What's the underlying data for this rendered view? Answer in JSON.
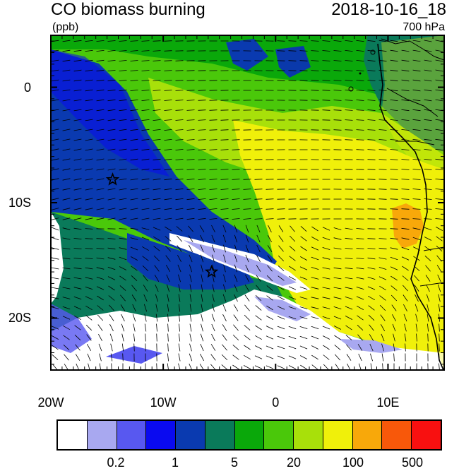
{
  "header": {
    "title": "CO biomass burning",
    "datetime": "2018-10-16_18",
    "units": "(ppb)",
    "level": "700 hPa"
  },
  "map": {
    "lat_labels": [
      "0",
      "10S",
      "20S"
    ],
    "lon_labels": [
      "20W",
      "10W",
      "0",
      "10E"
    ],
    "lat_values": [
      0,
      -10,
      -20
    ],
    "lon_values": [
      -20,
      -10,
      0,
      10
    ],
    "extent": {
      "lon_min": -20,
      "lon_max": 15,
      "lat_min": -24.5,
      "lat_max": 4.5
    },
    "markers": [
      {
        "type": "star",
        "lon": -14.5,
        "lat": -8.0
      },
      {
        "type": "star",
        "lon": -5.7,
        "lat": -16.0
      }
    ]
  },
  "colorbar": {
    "colors": [
      "#ffffff",
      "#a8a8f0",
      "#5858f0",
      "#0a0af0",
      "#0a3ab0",
      "#0a7a5a",
      "#0aa80a",
      "#4ac80a",
      "#a8e00a",
      "#f0f00a",
      "#f8a80a",
      "#f8580a",
      "#f81010"
    ],
    "labels": [
      "0.2",
      "1",
      "5",
      "20",
      "100",
      "500"
    ]
  }
}
